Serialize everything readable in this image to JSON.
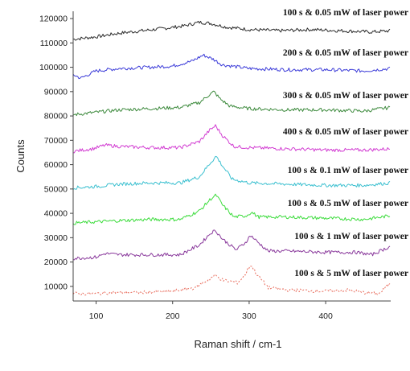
{
  "chart_data": {
    "type": "line",
    "xlabel": "Raman shift / cm-1",
    "ylabel": "Counts",
    "xlim": [
      70,
      485
    ],
    "ylim": [
      4000,
      123000
    ],
    "x_ticks": [
      100,
      200,
      300,
      400
    ],
    "y_ticks": [
      10000,
      20000,
      30000,
      40000,
      50000,
      60000,
      70000,
      80000,
      90000,
      100000,
      110000,
      120000
    ],
    "grid": false,
    "legend": "inline labels at right of each trace",
    "series": [
      {
        "name": "100 s & 0.05 mW of laser power",
        "color": "#2a2a2a",
        "dash": "",
        "points": [
          [
            70,
            111500
          ],
          [
            100,
            112500
          ],
          [
            130,
            114000
          ],
          [
            160,
            115000
          ],
          [
            190,
            116000
          ],
          [
            215,
            117000
          ],
          [
            235,
            118500
          ],
          [
            250,
            118000
          ],
          [
            270,
            116500
          ],
          [
            300,
            115500
          ],
          [
            340,
            115000
          ],
          [
            380,
            115500
          ],
          [
            420,
            115000
          ],
          [
            460,
            114500
          ],
          [
            485,
            115000
          ]
        ]
      },
      {
        "name": "200 s & 0.05 mW of laser power",
        "color": "#3a3ad8",
        "dash": "",
        "points": [
          [
            70,
            97000
          ],
          [
            80,
            95500
          ],
          [
            100,
            98500
          ],
          [
            130,
            99500
          ],
          [
            170,
            100000
          ],
          [
            200,
            100500
          ],
          [
            225,
            102500
          ],
          [
            240,
            105000
          ],
          [
            252,
            103500
          ],
          [
            265,
            101000
          ],
          [
            300,
            99500
          ],
          [
            350,
            99000
          ],
          [
            400,
            99000
          ],
          [
            450,
            98500
          ],
          [
            485,
            99500
          ]
        ]
      },
      {
        "name": "300 s & 0.05 mW of laser power",
        "color": "#3d8a3d",
        "dash": "",
        "points": [
          [
            70,
            80500
          ],
          [
            100,
            81500
          ],
          [
            130,
            82500
          ],
          [
            170,
            83000
          ],
          [
            210,
            83500
          ],
          [
            235,
            85500
          ],
          [
            247,
            88500
          ],
          [
            254,
            90000
          ],
          [
            262,
            87000
          ],
          [
            275,
            84000
          ],
          [
            300,
            83000
          ],
          [
            350,
            82500
          ],
          [
            400,
            82500
          ],
          [
            450,
            82000
          ],
          [
            485,
            83500
          ]
        ]
      },
      {
        "name": "400 s & 0.05 mW of laser power",
        "color": "#d23ed2",
        "dash": "",
        "points": [
          [
            70,
            65500
          ],
          [
            95,
            66500
          ],
          [
            112,
            68000
          ],
          [
            130,
            67500
          ],
          [
            170,
            67000
          ],
          [
            210,
            67000
          ],
          [
            235,
            69500
          ],
          [
            248,
            74000
          ],
          [
            256,
            76000
          ],
          [
            265,
            72000
          ],
          [
            280,
            67500
          ],
          [
            300,
            67000
          ],
          [
            350,
            66500
          ],
          [
            400,
            66000
          ],
          [
            450,
            66000
          ],
          [
            485,
            66500
          ]
        ]
      },
      {
        "name": "100 s & 0.1 mW of laser power",
        "color": "#3cc0d0",
        "dash": "",
        "points": [
          [
            70,
            50500
          ],
          [
            100,
            51000
          ],
          [
            130,
            52000
          ],
          [
            170,
            52500
          ],
          [
            210,
            52500
          ],
          [
            235,
            55000
          ],
          [
            250,
            61000
          ],
          [
            257,
            63500
          ],
          [
            264,
            60000
          ],
          [
            278,
            54000
          ],
          [
            300,
            52500
          ],
          [
            350,
            52000
          ],
          [
            400,
            51500
          ],
          [
            450,
            51500
          ],
          [
            485,
            52500
          ]
        ]
      },
      {
        "name": "100 s & 0.5 mW of laser power",
        "color": "#3ddc3d",
        "dash": "",
        "points": [
          [
            70,
            36000
          ],
          [
            100,
            36500
          ],
          [
            130,
            37000
          ],
          [
            170,
            37500
          ],
          [
            210,
            37500
          ],
          [
            235,
            41000
          ],
          [
            250,
            46000
          ],
          [
            257,
            47500
          ],
          [
            265,
            43500
          ],
          [
            280,
            38500
          ],
          [
            296,
            39000
          ],
          [
            303,
            40500
          ],
          [
            312,
            38500
          ],
          [
            350,
            38500
          ],
          [
            400,
            38000
          ],
          [
            450,
            37500
          ],
          [
            485,
            39000
          ]
        ]
      },
      {
        "name": "100 s & 1 mW of laser power",
        "color": "#8a3a9c",
        "dash": "",
        "points": [
          [
            70,
            21500
          ],
          [
            100,
            22000
          ],
          [
            112,
            23500
          ],
          [
            130,
            23000
          ],
          [
            170,
            23000
          ],
          [
            210,
            23000
          ],
          [
            235,
            27000
          ],
          [
            250,
            32000
          ],
          [
            256,
            33000
          ],
          [
            265,
            29500
          ],
          [
            283,
            25000
          ],
          [
            295,
            28000
          ],
          [
            302,
            31000
          ],
          [
            310,
            28500
          ],
          [
            325,
            24500
          ],
          [
            350,
            24500
          ],
          [
            400,
            24000
          ],
          [
            440,
            24000
          ],
          [
            460,
            23000
          ],
          [
            485,
            26500
          ]
        ]
      },
      {
        "name": "100 s & 5 mW of laser power",
        "color": "#e86a5a",
        "dash": "2,2",
        "points": [
          [
            70,
            7000
          ],
          [
            100,
            7000
          ],
          [
            120,
            7500
          ],
          [
            160,
            7500
          ],
          [
            200,
            8000
          ],
          [
            230,
            9500
          ],
          [
            245,
            12500
          ],
          [
            256,
            14500
          ],
          [
            266,
            12500
          ],
          [
            285,
            11500
          ],
          [
            294,
            14500
          ],
          [
            302,
            19000
          ],
          [
            310,
            15000
          ],
          [
            325,
            9500
          ],
          [
            350,
            8500
          ],
          [
            400,
            8000
          ],
          [
            430,
            8500
          ],
          [
            450,
            7500
          ],
          [
            470,
            7000
          ],
          [
            485,
            11500
          ]
        ]
      }
    ]
  }
}
